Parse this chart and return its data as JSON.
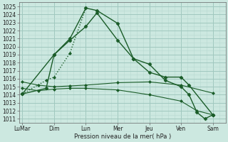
{
  "background_color": "#cce8e0",
  "grid_color_major": "#a0c8be",
  "grid_color_minor": "#b8d8d0",
  "line_color": "#1a5c28",
  "title": "Pression niveau de la mer( hPa )",
  "ylim": [
    1010.5,
    1025.5
  ],
  "yticks": [
    1011,
    1012,
    1013,
    1014,
    1015,
    1016,
    1017,
    1018,
    1019,
    1020,
    1021,
    1022,
    1023,
    1024,
    1025
  ],
  "x_labels": [
    "LuMar",
    "Dim",
    "Lun",
    "Mer",
    "Jeu",
    "Ven",
    "Sam"
  ],
  "x_positions": [
    0,
    2,
    4,
    6,
    8,
    10,
    12
  ],
  "xlim": [
    -0.2,
    12.8
  ],
  "series1": {
    "x": [
      0,
      1.5,
      2,
      3,
      4,
      4.7,
      6,
      7,
      8,
      9,
      10,
      10.5,
      12
    ],
    "y": [
      1014.1,
      1014.8,
      1019.0,
      1021.0,
      1024.8,
      1024.5,
      1022.9,
      1018.5,
      1016.8,
      1016.2,
      1016.2,
      1015.2,
      1011.5
    ],
    "marker": "D",
    "markersize": 2.5,
    "linestyle": "-",
    "linewidth": 1.0
  },
  "series2": {
    "x": [
      0,
      2,
      3,
      4,
      4.7,
      6,
      7,
      8,
      9,
      10,
      10.5,
      11,
      11.5,
      12
    ],
    "y": [
      1014.1,
      1019.0,
      1020.8,
      1022.5,
      1024.2,
      1020.8,
      1018.5,
      1017.8,
      1015.8,
      1015.0,
      1014.0,
      1011.8,
      1011.0,
      1011.5
    ],
    "marker": "D",
    "markersize": 2.5,
    "linestyle": "-",
    "linewidth": 1.0
  },
  "series3_dotted": {
    "x": [
      0,
      1.5,
      2,
      3,
      4
    ],
    "y": [
      1014.1,
      1015.8,
      1016.2,
      1019.2,
      1024.8
    ],
    "marker": "D",
    "markersize": 2.0,
    "linestyle": ":",
    "linewidth": 1.0
  },
  "series4": {
    "x": [
      0,
      1.0,
      2,
      3,
      4,
      6,
      8,
      10,
      12
    ],
    "y": [
      1015.6,
      1015.2,
      1015.0,
      1015.1,
      1015.2,
      1015.5,
      1015.6,
      1015.2,
      1014.2
    ],
    "marker": "D",
    "markersize": 2.0,
    "linestyle": "-",
    "linewidth": 0.8
  },
  "series5": {
    "x": [
      0,
      1.0,
      2,
      3,
      4,
      6,
      8,
      10,
      11,
      12
    ],
    "y": [
      1014.8,
      1014.5,
      1014.7,
      1014.8,
      1014.8,
      1014.6,
      1014.0,
      1013.2,
      1012.0,
      1011.5
    ],
    "marker": "D",
    "markersize": 2.0,
    "linestyle": "-",
    "linewidth": 0.8
  }
}
